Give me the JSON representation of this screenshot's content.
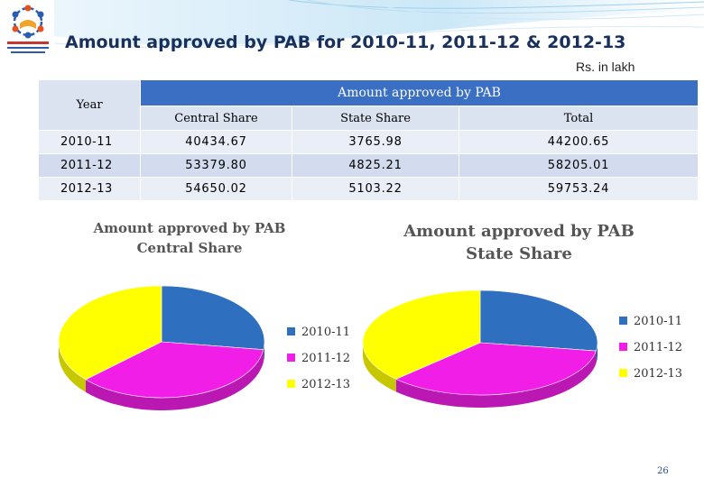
{
  "title": "Amount approved by PAB for 2010-11, 2011-12 & 2012-13",
  "unit": "Rs. in lakh",
  "table": {
    "year_header": "Year",
    "group_header": "Amount approved by PAB",
    "columns": [
      "Central Share",
      "State Share",
      "Total"
    ],
    "rows": [
      {
        "year": "2010-11",
        "central": "40434.67",
        "state": "3765.98",
        "total": "44200.65"
      },
      {
        "year": "2011-12",
        "central": "53379.80",
        "state": "4825.21",
        "total": "58205.01"
      },
      {
        "year": "2012-13",
        "central": "54650.02",
        "state": "5103.22",
        "total": "59753.24"
      }
    ]
  },
  "colors": {
    "2010-11": "#2e6fc0",
    "2011-12": "#f01ee6",
    "2012-13": "#ffff00",
    "title": "#17305e",
    "table_header": "#3a6fc4"
  },
  "chart_data": [
    {
      "type": "pie",
      "title_line1": "Amount approved by PAB",
      "title_line2": "Central Share",
      "categories": [
        "2010-11",
        "2011-12",
        "2012-13"
      ],
      "values": [
        40434.67,
        53379.8,
        54650.02
      ],
      "legend": "right"
    },
    {
      "type": "pie",
      "title_line1": "Amount approved by PAB",
      "title_line2": "State Share",
      "categories": [
        "2010-11",
        "2011-12",
        "2012-13"
      ],
      "values": [
        3765.98,
        4825.21,
        5103.22
      ],
      "legend": "right"
    }
  ],
  "page_number": "26"
}
